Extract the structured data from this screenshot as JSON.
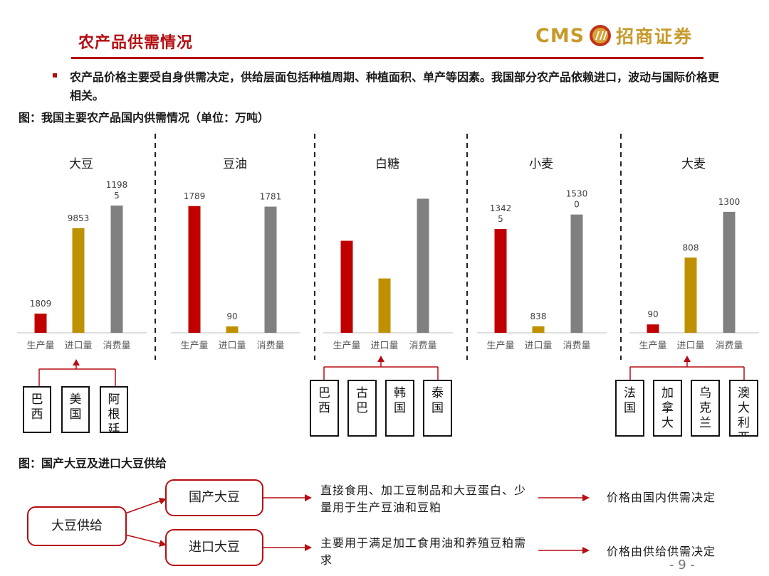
{
  "header": {
    "title": "农产品供需情况",
    "logo_latin": "CMS",
    "logo_cn": "招商证券",
    "emblem_colors": [
      "#c0341a",
      "#d9a23a"
    ]
  },
  "bullet": {
    "text": "农产品价格主要受自身供需决定，供给层面包括种植周期、种植面积、单产等因素。我国部分农产品依赖进口，波动与国际价格更相关。"
  },
  "figure1": {
    "caption": "图：我国主要农产品国内供需情况（单位：万吨）"
  },
  "chart_data": [
    {
      "type": "bar",
      "title": "大豆",
      "categories": [
        "生产量",
        "进口量",
        "消费量"
      ],
      "values": [
        1809,
        9853,
        11985
      ],
      "labels": [
        "1809",
        "9853",
        "1198\n5"
      ],
      "ylim": [
        0,
        14200
      ],
      "colors": [
        "#c00000",
        "#bf9000",
        "#808080"
      ]
    },
    {
      "type": "bar",
      "title": "豆油",
      "categories": [
        "生产量",
        "进口量",
        "消费量"
      ],
      "values": [
        1789,
        90,
        1781
      ],
      "labels": [
        "1789",
        "90",
        "1781"
      ],
      "ylim": [
        0,
        2128
      ],
      "colors": [
        "#c00000",
        "#bf9000",
        "#808080"
      ]
    },
    {
      "type": "bar",
      "title": "白糖",
      "categories": [
        "生产量",
        "进口量",
        "消费量"
      ],
      "values": [
        1050,
        620,
        1530
      ],
      "labels": [
        "",
        "",
        ""
      ],
      "ylim": [
        0,
        1720
      ],
      "colors": [
        "#c00000",
        "#bf9000",
        "#808080"
      ]
    },
    {
      "type": "bar",
      "title": "小麦",
      "categories": [
        "生产量",
        "进口量",
        "消费量"
      ],
      "values": [
        13425,
        838,
        15300
      ],
      "labels": [
        "1342\n5",
        "838",
        "1530\n0"
      ],
      "ylim": [
        0,
        19500
      ],
      "colors": [
        "#c00000",
        "#bf9000",
        "#808080"
      ]
    },
    {
      "type": "bar",
      "title": "大麦",
      "categories": [
        "生产量",
        "进口量",
        "消费量"
      ],
      "values": [
        90,
        808,
        1300
      ],
      "labels": [
        "90",
        "808",
        "1300"
      ],
      "ylim": [
        0,
        1620
      ],
      "colors": [
        "#c00000",
        "#bf9000",
        "#808080"
      ]
    }
  ],
  "sources": {
    "soybean": [
      "巴西",
      "美国",
      "阿根廷"
    ],
    "sugar": [
      "巴西",
      "古巴",
      "韩国",
      "泰国"
    ],
    "barley": [
      "法国",
      "加拿大",
      "乌克兰",
      "澳大利亚"
    ]
  },
  "figure2": {
    "caption": "图：国产大豆及进口大豆供给",
    "root": "大豆供给",
    "branches": [
      {
        "label": "国产大豆",
        "usage": "直接食用、加工豆制品和大豆蛋白、少量用于生产豆油和豆粕",
        "result": "价格由国内供需决定"
      },
      {
        "label": "进口大豆",
        "usage": "主要用于满足加工食用油和养殖豆粕需求",
        "result": "价格由供给供需决定"
      }
    ]
  },
  "footer": {
    "page": "- 9 -"
  }
}
